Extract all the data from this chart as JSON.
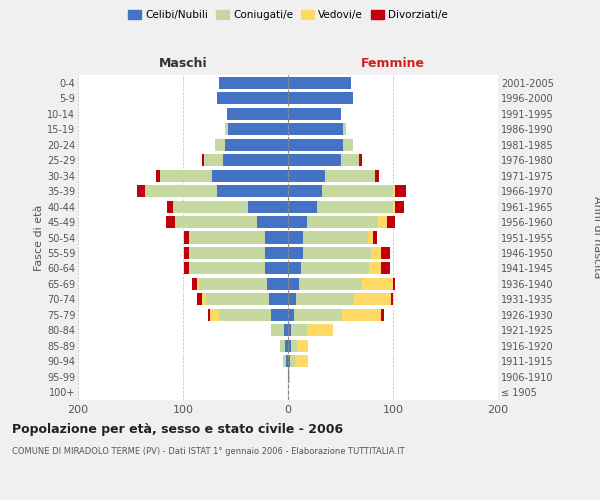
{
  "age_groups": [
    "100+",
    "95-99",
    "90-94",
    "85-89",
    "80-84",
    "75-79",
    "70-74",
    "65-69",
    "60-64",
    "55-59",
    "50-54",
    "45-49",
    "40-44",
    "35-39",
    "30-34",
    "25-29",
    "20-24",
    "15-19",
    "10-14",
    "5-9",
    "0-4"
  ],
  "birth_years": [
    "≤ 1905",
    "1906-1910",
    "1911-1915",
    "1916-1920",
    "1921-1925",
    "1926-1930",
    "1931-1935",
    "1936-1940",
    "1941-1945",
    "1946-1950",
    "1951-1955",
    "1956-1960",
    "1961-1965",
    "1966-1970",
    "1971-1975",
    "1976-1980",
    "1981-1985",
    "1986-1990",
    "1991-1995",
    "1996-2000",
    "2001-2005"
  ],
  "maschi": {
    "celibi": [
      0,
      0,
      2,
      3,
      4,
      16,
      18,
      20,
      22,
      22,
      22,
      30,
      38,
      68,
      72,
      62,
      60,
      57,
      58,
      68,
      66
    ],
    "coniugati": [
      0,
      0,
      3,
      5,
      12,
      50,
      60,
      65,
      72,
      72,
      72,
      78,
      72,
      68,
      50,
      18,
      10,
      3,
      0,
      0,
      0
    ],
    "vedovi": [
      0,
      0,
      0,
      0,
      0,
      8,
      4,
      2,
      0,
      0,
      0,
      0,
      0,
      0,
      0,
      0,
      0,
      0,
      0,
      0,
      0
    ],
    "divorziati": [
      0,
      0,
      0,
      0,
      0,
      2,
      5,
      4,
      5,
      5,
      5,
      8,
      5,
      8,
      4,
      2,
      0,
      0,
      0,
      0,
      0
    ]
  },
  "femmine": {
    "nubili": [
      0,
      1,
      2,
      3,
      3,
      6,
      8,
      10,
      12,
      14,
      14,
      18,
      28,
      32,
      35,
      50,
      52,
      52,
      50,
      62,
      60
    ],
    "coniugate": [
      0,
      0,
      5,
      6,
      15,
      45,
      55,
      60,
      65,
      65,
      62,
      68,
      72,
      68,
      48,
      18,
      10,
      3,
      0,
      0,
      0
    ],
    "vedove": [
      0,
      1,
      12,
      10,
      25,
      38,
      35,
      30,
      12,
      10,
      5,
      8,
      2,
      2,
      0,
      0,
      0,
      0,
      0,
      0,
      0
    ],
    "divorziate": [
      0,
      0,
      0,
      0,
      0,
      2,
      2,
      2,
      8,
      8,
      4,
      8,
      8,
      10,
      4,
      2,
      0,
      0,
      0,
      0,
      0
    ]
  },
  "colors": {
    "celibi_nubili": "#4472c4",
    "coniugati_e": "#c5d8a0",
    "vedovi_e": "#ffd966",
    "divorziati_e": "#c0000b"
  },
  "xlim": 200,
  "title": "Popolazione per età, sesso e stato civile - 2006",
  "subtitle": "COMUNE DI MIRADOLO TERME (PV) - Dati ISTAT 1° gennaio 2006 - Elaborazione TUTTITALIA.IT",
  "ylabel_left": "Fasce di età",
  "ylabel_right": "Anni di nascita",
  "xlabel_left": "Maschi",
  "xlabel_right": "Femmine",
  "background_color": "#f0f0f0",
  "plot_bg_color": "#ffffff"
}
